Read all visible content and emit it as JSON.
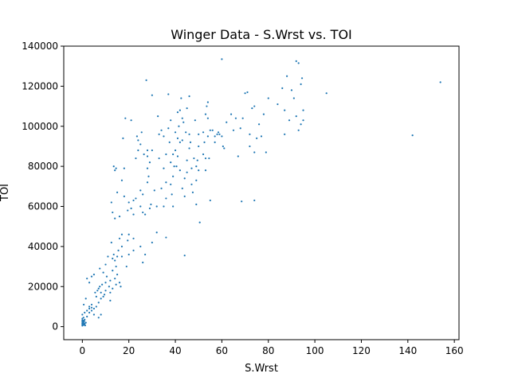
{
  "chart_data": {
    "type": "scatter",
    "title": "Winger Data - S.Wrst vs. TOI",
    "xlabel": "S.Wrst",
    "ylabel": "TOI",
    "xlim": [
      -8,
      162
    ],
    "ylim": [
      -6500,
      140000
    ],
    "xticks": [
      0,
      20,
      40,
      60,
      80,
      100,
      120,
      140,
      160
    ],
    "yticks": [
      0,
      20000,
      40000,
      60000,
      80000,
      100000,
      120000,
      140000
    ],
    "grid": false,
    "legend": "none",
    "point_color": "#1f77b4",
    "series": [
      {
        "points": [
          [
            0,
            500
          ],
          [
            0,
            1200
          ],
          [
            0,
            1800
          ],
          [
            0,
            2500
          ],
          [
            0,
            3200
          ],
          [
            0,
            4000
          ],
          [
            0.3,
            800
          ],
          [
            0.3,
            1600
          ],
          [
            0.5,
            2200
          ],
          [
            0.5,
            3000
          ],
          [
            0.8,
            1000
          ],
          [
            0.8,
            2700
          ],
          [
            1,
            1500
          ],
          [
            1,
            3500
          ],
          [
            1.2,
            600
          ],
          [
            1.5,
            2000
          ],
          [
            0.5,
            4500
          ],
          [
            0,
            6000
          ],
          [
            1,
            7000
          ],
          [
            0.6,
            11000
          ],
          [
            2,
            5000
          ],
          [
            2,
            8000
          ],
          [
            1.5,
            14000
          ],
          [
            2,
            24000
          ],
          [
            3,
            7000
          ],
          [
            3,
            9000
          ],
          [
            3,
            10000
          ],
          [
            3,
            22000
          ],
          [
            4,
            8000
          ],
          [
            4,
            9500
          ],
          [
            4,
            11000
          ],
          [
            4,
            25000
          ],
          [
            5,
            6000
          ],
          [
            5,
            9000
          ],
          [
            5,
            26000
          ],
          [
            5.5,
            17000
          ],
          [
            6,
            10000
          ],
          [
            6,
            15000
          ],
          [
            6.5,
            18000
          ],
          [
            7,
            4500
          ],
          [
            7,
            12000
          ],
          [
            7,
            19000
          ],
          [
            7.5,
            20000
          ],
          [
            7.5,
            29000
          ],
          [
            8,
            6000
          ],
          [
            8,
            14000
          ],
          [
            8,
            17000
          ],
          [
            8.5,
            21000
          ],
          [
            9,
            15000
          ],
          [
            9,
            27000
          ],
          [
            9.5,
            16000
          ],
          [
            10,
            18000
          ],
          [
            10,
            22000
          ],
          [
            10,
            31000
          ],
          [
            10.5,
            25000
          ],
          [
            11,
            35000
          ],
          [
            11.5,
            20000
          ],
          [
            12,
            13000
          ],
          [
            12,
            17000
          ],
          [
            12,
            23000
          ],
          [
            12.5,
            42000
          ],
          [
            12.5,
            62000
          ],
          [
            13,
            19000
          ],
          [
            13,
            28000
          ],
          [
            13,
            34000
          ],
          [
            13,
            57000
          ],
          [
            13.5,
            36000
          ],
          [
            13.5,
            80000
          ],
          [
            14,
            24000
          ],
          [
            14,
            33000
          ],
          [
            14,
            54000
          ],
          [
            14,
            78000
          ],
          [
            14.5,
            21000
          ],
          [
            14.5,
            30000
          ],
          [
            14.5,
            79000
          ],
          [
            15,
            26000
          ],
          [
            15,
            35000
          ],
          [
            15,
            67000
          ],
          [
            15.5,
            38000
          ],
          [
            16,
            22000
          ],
          [
            16,
            44000
          ],
          [
            16,
            55000
          ],
          [
            16.5,
            20000
          ],
          [
            17,
            35000
          ],
          [
            17,
            40000
          ],
          [
            17,
            46000
          ],
          [
            17,
            73000
          ],
          [
            17.5,
            94000
          ],
          [
            18,
            65000
          ],
          [
            18,
            79000
          ],
          [
            18.5,
            104000
          ],
          [
            19,
            30000
          ],
          [
            19.5,
            43000
          ],
          [
            19.5,
            58000
          ],
          [
            20,
            36000
          ],
          [
            20,
            46000
          ],
          [
            20,
            62000
          ],
          [
            21,
            59000
          ],
          [
            21,
            103000
          ],
          [
            22,
            38000
          ],
          [
            22,
            44000
          ],
          [
            22,
            56000
          ],
          [
            22,
            63000
          ],
          [
            23,
            64000
          ],
          [
            23,
            84000
          ],
          [
            23.5,
            95000
          ],
          [
            24,
            88000
          ],
          [
            24,
            93000
          ],
          [
            25,
            40000
          ],
          [
            25,
            60000
          ],
          [
            25,
            68000
          ],
          [
            25,
            91000
          ],
          [
            25.5,
            97000
          ],
          [
            26,
            32000
          ],
          [
            26,
            57000
          ],
          [
            26,
            66000
          ],
          [
            26.5,
            86000
          ],
          [
            27,
            36000
          ],
          [
            27,
            56000
          ],
          [
            27.5,
            123000
          ],
          [
            28,
            72000
          ],
          [
            28,
            79000
          ],
          [
            28,
            85000
          ],
          [
            28,
            88000
          ],
          [
            28.5,
            75000
          ],
          [
            29,
            59000
          ],
          [
            29,
            82000
          ],
          [
            29.5,
            61000
          ],
          [
            30,
            42000
          ],
          [
            30,
            88000
          ],
          [
            30,
            115500
          ],
          [
            31,
            68000
          ],
          [
            32,
            47000
          ],
          [
            32,
            60000
          ],
          [
            32.5,
            105000
          ],
          [
            33,
            84000
          ],
          [
            33,
            96000
          ],
          [
            34,
            69000
          ],
          [
            34,
            98000
          ],
          [
            35,
            60000
          ],
          [
            35,
            79000
          ],
          [
            35,
            95000
          ],
          [
            36,
            44500
          ],
          [
            36,
            64000
          ],
          [
            36,
            72000
          ],
          [
            36,
            86000
          ],
          [
            37,
            99000
          ],
          [
            37,
            116000
          ],
          [
            37.5,
            92000
          ],
          [
            38,
            71000
          ],
          [
            38,
            82000
          ],
          [
            38,
            103000
          ],
          [
            38.5,
            66000
          ],
          [
            39,
            60000
          ],
          [
            39,
            75000
          ],
          [
            39,
            86000
          ],
          [
            39.5,
            80000
          ],
          [
            40,
            88000
          ],
          [
            40,
            97000
          ],
          [
            40.5,
            80000
          ],
          [
            41,
            85000
          ],
          [
            41,
            94000
          ],
          [
            41,
            107000
          ],
          [
            41.5,
            100000
          ],
          [
            42,
            78000
          ],
          [
            42,
            92000
          ],
          [
            42,
            108000
          ],
          [
            42.5,
            114000
          ],
          [
            43,
            69000
          ],
          [
            43,
            93000
          ],
          [
            43,
            104000
          ],
          [
            43.5,
            102000
          ],
          [
            44,
            65000
          ],
          [
            44,
            74000
          ],
          [
            44,
            35500
          ],
          [
            44.5,
            97000
          ],
          [
            45,
            77000
          ],
          [
            45,
            83000
          ],
          [
            45,
            109000
          ],
          [
            46,
            89000
          ],
          [
            46,
            96000
          ],
          [
            46,
            115000
          ],
          [
            46.5,
            92000
          ],
          [
            47,
            71000
          ],
          [
            47,
            79000
          ],
          [
            47.5,
            67000
          ],
          [
            48,
            84000
          ],
          [
            48.5,
            103000
          ],
          [
            49,
            61000
          ],
          [
            49,
            73000
          ],
          [
            49,
            80000
          ],
          [
            49.5,
            83000
          ],
          [
            50,
            78000
          ],
          [
            50,
            90000
          ],
          [
            50,
            96000
          ],
          [
            50.5,
            52000
          ],
          [
            52,
            86000
          ],
          [
            52,
            97000
          ],
          [
            52.5,
            92000
          ],
          [
            53,
            78000
          ],
          [
            53,
            84000
          ],
          [
            53,
            106000
          ],
          [
            53.5,
            110000
          ],
          [
            54,
            95000
          ],
          [
            54,
            104000
          ],
          [
            54,
            112000
          ],
          [
            54.5,
            84000
          ],
          [
            55,
            98000
          ],
          [
            55,
            63000
          ],
          [
            56,
            98000
          ],
          [
            57,
            92000
          ],
          [
            57,
            95000
          ],
          [
            58,
            96000
          ],
          [
            58.5,
            97000
          ],
          [
            59,
            96000
          ],
          [
            60,
            133500
          ],
          [
            60,
            95000
          ],
          [
            60.5,
            90000
          ],
          [
            61,
            89000
          ],
          [
            62,
            102000
          ],
          [
            64,
            106000
          ],
          [
            65,
            98000
          ],
          [
            66,
            104000
          ],
          [
            67,
            85000
          ],
          [
            68,
            99000
          ],
          [
            68.5,
            62500
          ],
          [
            69,
            104000
          ],
          [
            70,
            116500
          ],
          [
            71,
            117000
          ],
          [
            72,
            90000
          ],
          [
            72,
            96000
          ],
          [
            73,
            109000
          ],
          [
            74,
            110000
          ],
          [
            74,
            87000
          ],
          [
            74,
            63000
          ],
          [
            75,
            94000
          ],
          [
            76,
            101000
          ],
          [
            77,
            95000
          ],
          [
            78,
            106000
          ],
          [
            79,
            87000
          ],
          [
            80,
            114000
          ],
          [
            84,
            111000
          ],
          [
            86,
            119000
          ],
          [
            87,
            108000
          ],
          [
            87,
            96000
          ],
          [
            88,
            125000
          ],
          [
            89,
            103000
          ],
          [
            90,
            118000
          ],
          [
            91,
            114000
          ],
          [
            92,
            105000
          ],
          [
            92,
            132500
          ],
          [
            93,
            98000
          ],
          [
            93,
            131500
          ],
          [
            94,
            101000
          ],
          [
            94,
            121000
          ],
          [
            94.5,
            124000
          ],
          [
            95,
            103000
          ],
          [
            95,
            108000
          ],
          [
            105,
            116500
          ],
          [
            142,
            95500
          ],
          [
            154,
            122000
          ]
        ]
      }
    ]
  }
}
